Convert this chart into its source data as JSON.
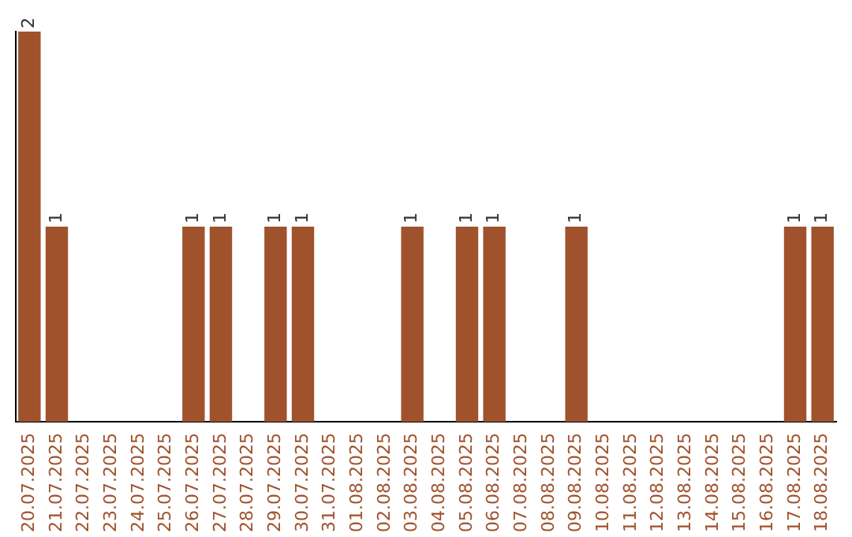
{
  "chart_data": {
    "type": "bar",
    "categories": [
      "20.07.2025",
      "21.07.2025",
      "22.07.2025",
      "23.07.2025",
      "24.07.2025",
      "25.07.2025",
      "26.07.2025",
      "27.07.2025",
      "28.07.2025",
      "29.07.2025",
      "30.07.2025",
      "31.07.2025",
      "01.08.2025",
      "02.08.2025",
      "03.08.2025",
      "04.08.2025",
      "05.08.2025",
      "06.08.2025",
      "07.08.2025",
      "08.08.2025",
      "09.08.2025",
      "10.08.2025",
      "11.08.2025",
      "12.08.2025",
      "13.08.2025",
      "14.08.2025",
      "15.08.2025",
      "16.08.2025",
      "17.08.2025",
      "18.08.2025"
    ],
    "values": [
      2,
      1,
      0,
      0,
      0,
      0,
      1,
      1,
      0,
      1,
      1,
      0,
      0,
      0,
      1,
      0,
      1,
      1,
      0,
      0,
      1,
      0,
      0,
      0,
      0,
      0,
      0,
      0,
      1,
      1
    ],
    "value_labels": [
      "2",
      "1",
      null,
      null,
      null,
      null,
      "1",
      "1",
      null,
      "1",
      "1",
      null,
      null,
      null,
      "1",
      null,
      "1",
      "1",
      null,
      null,
      "1",
      null,
      null,
      null,
      null,
      null,
      null,
      null,
      "1",
      "1"
    ],
    "color": "#a0522d",
    "grid": false,
    "legend": false,
    "tick_labels": "x"
  }
}
